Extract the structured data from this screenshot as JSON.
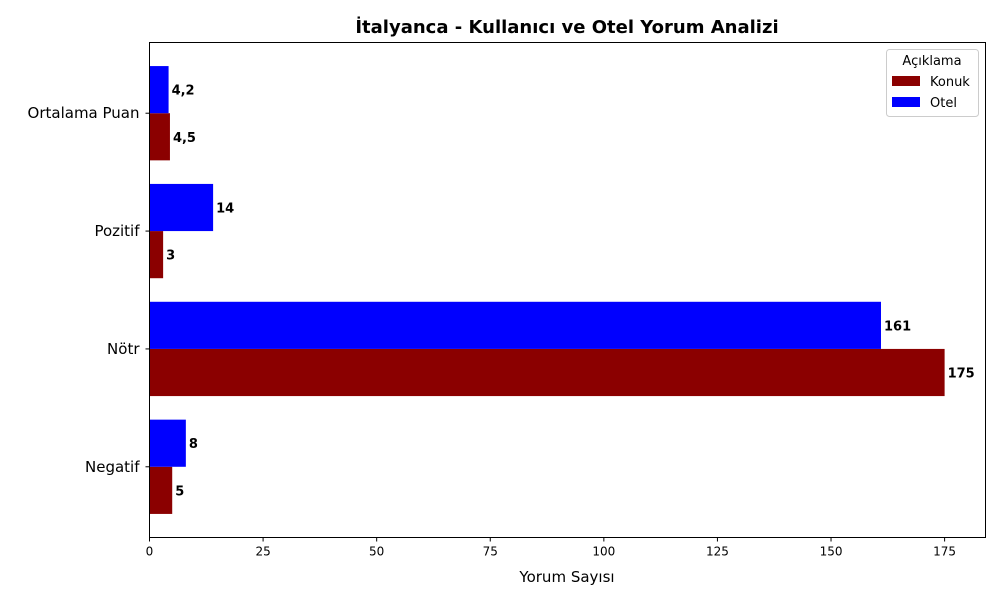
{
  "chart_data": {
    "type": "bar",
    "orientation": "horizontal",
    "title": "İtalyanca - Kullanıcı ve Otel Yorum Analizi",
    "xlabel": "Yorum Sayısı",
    "ylabel": "",
    "xlim": [
      0,
      184
    ],
    "xticks": [
      0,
      25,
      50,
      75,
      100,
      125,
      150,
      175
    ],
    "categories": [
      "Negatif",
      "Nötr",
      "Pozitif",
      "Ortalama Puan"
    ],
    "series": [
      {
        "name": "Konuk",
        "color": "#8b0000",
        "values": [
          5,
          175,
          3,
          4.5
        ],
        "labels": [
          "5",
          "175",
          "3",
          "4,5"
        ]
      },
      {
        "name": "Otel",
        "color": "#0000ff",
        "values": [
          8,
          161,
          14,
          4.2
        ],
        "labels": [
          "8",
          "161",
          "14",
          "4,2"
        ]
      }
    ],
    "legend": {
      "title": "Açıklama",
      "position": "top-right"
    },
    "grid": false
  }
}
